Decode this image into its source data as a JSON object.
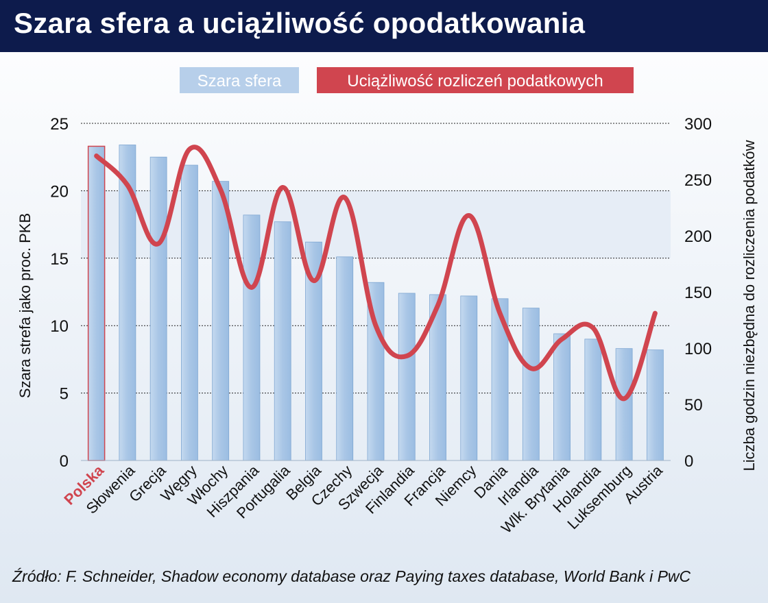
{
  "title": "Szara sfera a uciążliwość opodatkowania",
  "source": "Źródło: F. Schneider, Shadow economy database oraz Paying taxes database, World Bank i PwC",
  "colors": {
    "title_bg": "#0d1b4c",
    "bar": "#a9c6e6",
    "bar_edge": "#7fa7d2",
    "line": "#d0454f",
    "highlight": "#d0454f"
  },
  "chart_data": {
    "type": "bar",
    "categories": [
      "Polska",
      "Słowenia",
      "Grecja",
      "Węgry",
      "Włochy",
      "Hiszpania",
      "Portugalia",
      "Belgia",
      "Czechy",
      "Szwecja",
      "Finlandia",
      "Francja",
      "Niemcy",
      "Dania",
      "Irlandia",
      "Wlk. Brytania",
      "Holandia",
      "Luksemburg",
      "Austria"
    ],
    "highlight_category": "Polska",
    "series": [
      {
        "name": "Szara sfera",
        "type": "bar",
        "axis": "left",
        "values": [
          23.3,
          23.4,
          22.5,
          21.9,
          20.7,
          18.2,
          17.7,
          16.2,
          15.1,
          13.2,
          12.4,
          12.3,
          12.2,
          12.0,
          11.3,
          9.4,
          9.0,
          8.3,
          8.2
        ]
      },
      {
        "name": "Uciążliwość rozliczeń podatkowych",
        "type": "line",
        "axis": "right",
        "values": [
          271,
          245,
          193,
          277,
          241,
          154,
          243,
          160,
          234,
          120,
          93,
          138,
          218,
          131,
          82,
          108,
          118,
          55,
          131
        ]
      }
    ],
    "ylabel_left": "Szara strefa jako proc. PKB",
    "ylabel_right": "Liczba godzin niezbędna do rozliczenia podatków",
    "ylim_left": [
      0,
      25
    ],
    "ylim_right": [
      0,
      300
    ],
    "yticks_left": [
      "0",
      "5",
      "10",
      "15",
      "20",
      "25"
    ],
    "yticks_right": [
      "0",
      "50",
      "100",
      "150",
      "200",
      "250",
      "300"
    ],
    "grid": true,
    "legend_position": "top"
  }
}
